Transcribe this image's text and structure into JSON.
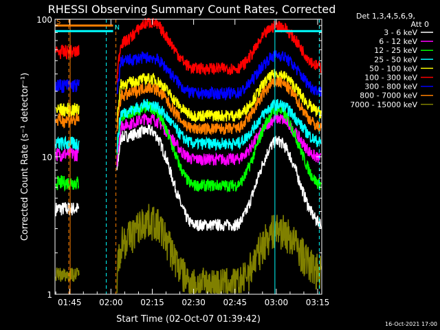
{
  "chart_data": {
    "type": "line",
    "title": "RHESSI Observing Summary Count Rates, Corrected",
    "xlabel": "Start Time (02-Oct-07 01:39:42)",
    "ylabel": "Corrected Count Rate (s⁻¹ detector⁻¹)",
    "x_range_min": [
      99.7,
      196.5
    ],
    "x_ticks": [
      {
        "min": 105,
        "label": "01:45"
      },
      {
        "min": 120,
        "label": "02:00"
      },
      {
        "min": 135,
        "label": "02:15"
      },
      {
        "min": 150,
        "label": "02:30"
      },
      {
        "min": 165,
        "label": "02:45"
      },
      {
        "min": 180,
        "label": "03:00"
      },
      {
        "min": 195,
        "label": "03:15"
      }
    ],
    "y_scale": "log",
    "ylim": [
      1,
      100
    ],
    "y_ticks": [
      {
        "v": 1,
        "label": "1"
      },
      {
        "v": 10,
        "label": "10"
      },
      {
        "v": 100,
        "label": "100"
      }
    ],
    "legend_header": [
      "Det 1,3,4,5,6,9,",
      "Att 0"
    ],
    "legend_position": "right",
    "data_gap_min": [
      108.5,
      122.0
    ],
    "series": [
      {
        "name": "3 - 6 keV",
        "color": "#ffffff",
        "early": 4.2,
        "rise_min": 122.2,
        "rise_val": 14,
        "peak1": 15.5,
        "trough": 3.2,
        "peak2": 13,
        "end": 3.3
      },
      {
        "name": "6 - 12 keV",
        "color": "#ff00ff",
        "early": 10.5,
        "rise_min": 122.2,
        "rise_val": 17,
        "peak1": 19,
        "trough": 9.6,
        "peak2": 19,
        "end": 9.7
      },
      {
        "name": "12 - 25 keV",
        "color": "#00ff00",
        "early": 6.5,
        "rise_min": 122.2,
        "rise_val": 20,
        "peak1": 23,
        "trough": 6.2,
        "peak2": 22,
        "end": 6.3
      },
      {
        "name": "25 - 50 keV",
        "color": "#00ffff",
        "early": 12.5,
        "rise_min": 122.2,
        "rise_val": 21,
        "peak1": 24,
        "trough": 12.5,
        "peak2": 24,
        "end": 12.8
      },
      {
        "name": "50 - 100 keV",
        "color": "#ffff00",
        "early": 22,
        "rise_min": 122.2,
        "rise_val": 34,
        "peak1": 37,
        "trough": 20,
        "peak2": 40,
        "end": 21
      },
      {
        "name": "100 - 300 keV",
        "color": "#ff0000",
        "early": 58,
        "rise_min": 122.2,
        "rise_val": 68,
        "peak1": 95,
        "trough": 44,
        "peak2": 90,
        "end": 45
      },
      {
        "name": "300 - 800 keV",
        "color": "#0000ff",
        "early": 33,
        "rise_min": 122.2,
        "rise_val": 50,
        "peak1": 53,
        "trough": 29,
        "peak2": 55,
        "end": 30
      },
      {
        "name": "800 - 7000 keV",
        "color": "#ff8000",
        "early": 18.5,
        "rise_min": 122.2,
        "rise_val": 28,
        "peak1": 32,
        "trough": 16,
        "peak2": 35,
        "end": 16.5
      },
      {
        "name": "7000 - 15000 keV",
        "color": "#808000",
        "early": 1.4,
        "rise_min": 122.2,
        "rise_val": 2.5,
        "peak1": 3.5,
        "trough": 1.2,
        "peak2": 3.0,
        "end": 1.5
      }
    ],
    "markers": [
      {
        "type": "dashed",
        "min": 104.7,
        "color": "#ff8000"
      },
      {
        "type": "dashed",
        "min": 121.8,
        "color": "#ff8000"
      },
      {
        "type": "dashed",
        "min": 118.3,
        "color": "#00ffff"
      },
      {
        "type": "dashed",
        "min": 195.6,
        "color": "#00ffff"
      },
      {
        "type": "solid",
        "min": 179.5,
        "color": "#00ffff"
      },
      {
        "type": "solid",
        "min": 105.2,
        "color": "#ff8000"
      }
    ],
    "bars": [
      {
        "label": "S",
        "from_min": 99.7,
        "to_min": 120.8,
        "color": "#ff8000",
        "level": 90
      },
      {
        "label": "N",
        "from_min": 99.7,
        "to_min": 120.8,
        "color": "#00ffff",
        "level": 82
      },
      {
        "label": "",
        "from_min": 179.5,
        "to_min": 196.5,
        "color": "#00ffff",
        "level": 82
      }
    ]
  },
  "footer_date": "16-Oct-2021 17:00"
}
